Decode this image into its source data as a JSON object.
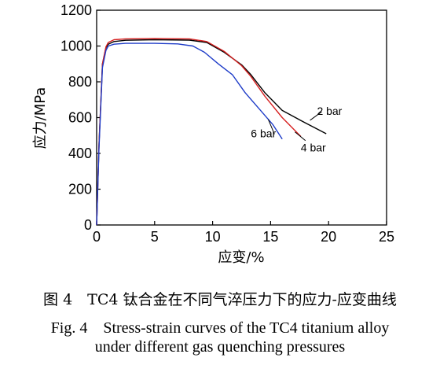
{
  "chart_data": {
    "type": "line",
    "xlabel": "应变/%",
    "ylabel": "应力/MPa",
    "xlim": [
      0,
      25
    ],
    "ylim": [
      0,
      1200
    ],
    "xticks": [
      0,
      5,
      10,
      15,
      20,
      25
    ],
    "yticks": [
      0,
      200,
      400,
      600,
      800,
      1000,
      1200
    ],
    "grid": false,
    "legend": "none",
    "series": [
      {
        "name": "2 bar",
        "color": "#000000",
        "x": [
          0,
          0.2,
          0.5,
          0.8,
          1.0,
          1.5,
          2.5,
          5,
          8,
          9.5,
          11,
          12.5,
          13.3,
          14.5,
          16,
          18,
          19.8
        ],
        "y": [
          0,
          450,
          900,
          990,
          1010,
          1025,
          1032,
          1035,
          1033,
          1020,
          965,
          895,
          840,
          740,
          640,
          570,
          510
        ]
      },
      {
        "name": "4 bar",
        "color": "#d62020",
        "x": [
          0,
          0.2,
          0.5,
          0.8,
          1.0,
          1.5,
          2.5,
          5,
          8,
          9.5,
          11,
          12.5,
          13.3,
          14.5,
          16,
          17.6
        ],
        "y": [
          0,
          450,
          900,
          995,
          1020,
          1035,
          1040,
          1042,
          1040,
          1025,
          970,
          890,
          830,
          720,
          600,
          495
        ]
      },
      {
        "name": "6 bar",
        "color": "#1e3cc8",
        "x": [
          0,
          0.2,
          0.5,
          0.8,
          1.0,
          1.5,
          2.5,
          5,
          7,
          8.3,
          9.3,
          10.5,
          11.7,
          12.8,
          14,
          15.2,
          16
        ],
        "y": [
          0,
          430,
          880,
          975,
          1000,
          1010,
          1015,
          1015,
          1012,
          1000,
          965,
          900,
          840,
          740,
          650,
          560,
          480
        ]
      }
    ],
    "labels": [
      {
        "text": "2 bar",
        "series": 0,
        "at": [
          19.0,
          615
        ],
        "anchor_pt": [
          18.4,
          585
        ]
      },
      {
        "text": "4 bar",
        "series": 1,
        "at": [
          17.6,
          410
        ],
        "anchor_pt": [
          17.1,
          520
        ]
      },
      {
        "text": "6 bar",
        "series": 2,
        "at": [
          13.3,
          490
        ],
        "anchor_pt": [
          14.8,
          590
        ]
      }
    ]
  },
  "caption": {
    "cn": "图 4　TC4 钛合金在不同气淬压力下的应力-应变曲线",
    "en_line1": "Fig. 4　Stress-strain curves of the TC4 titanium alloy",
    "en_line2": "under different gas quenching pressures"
  }
}
